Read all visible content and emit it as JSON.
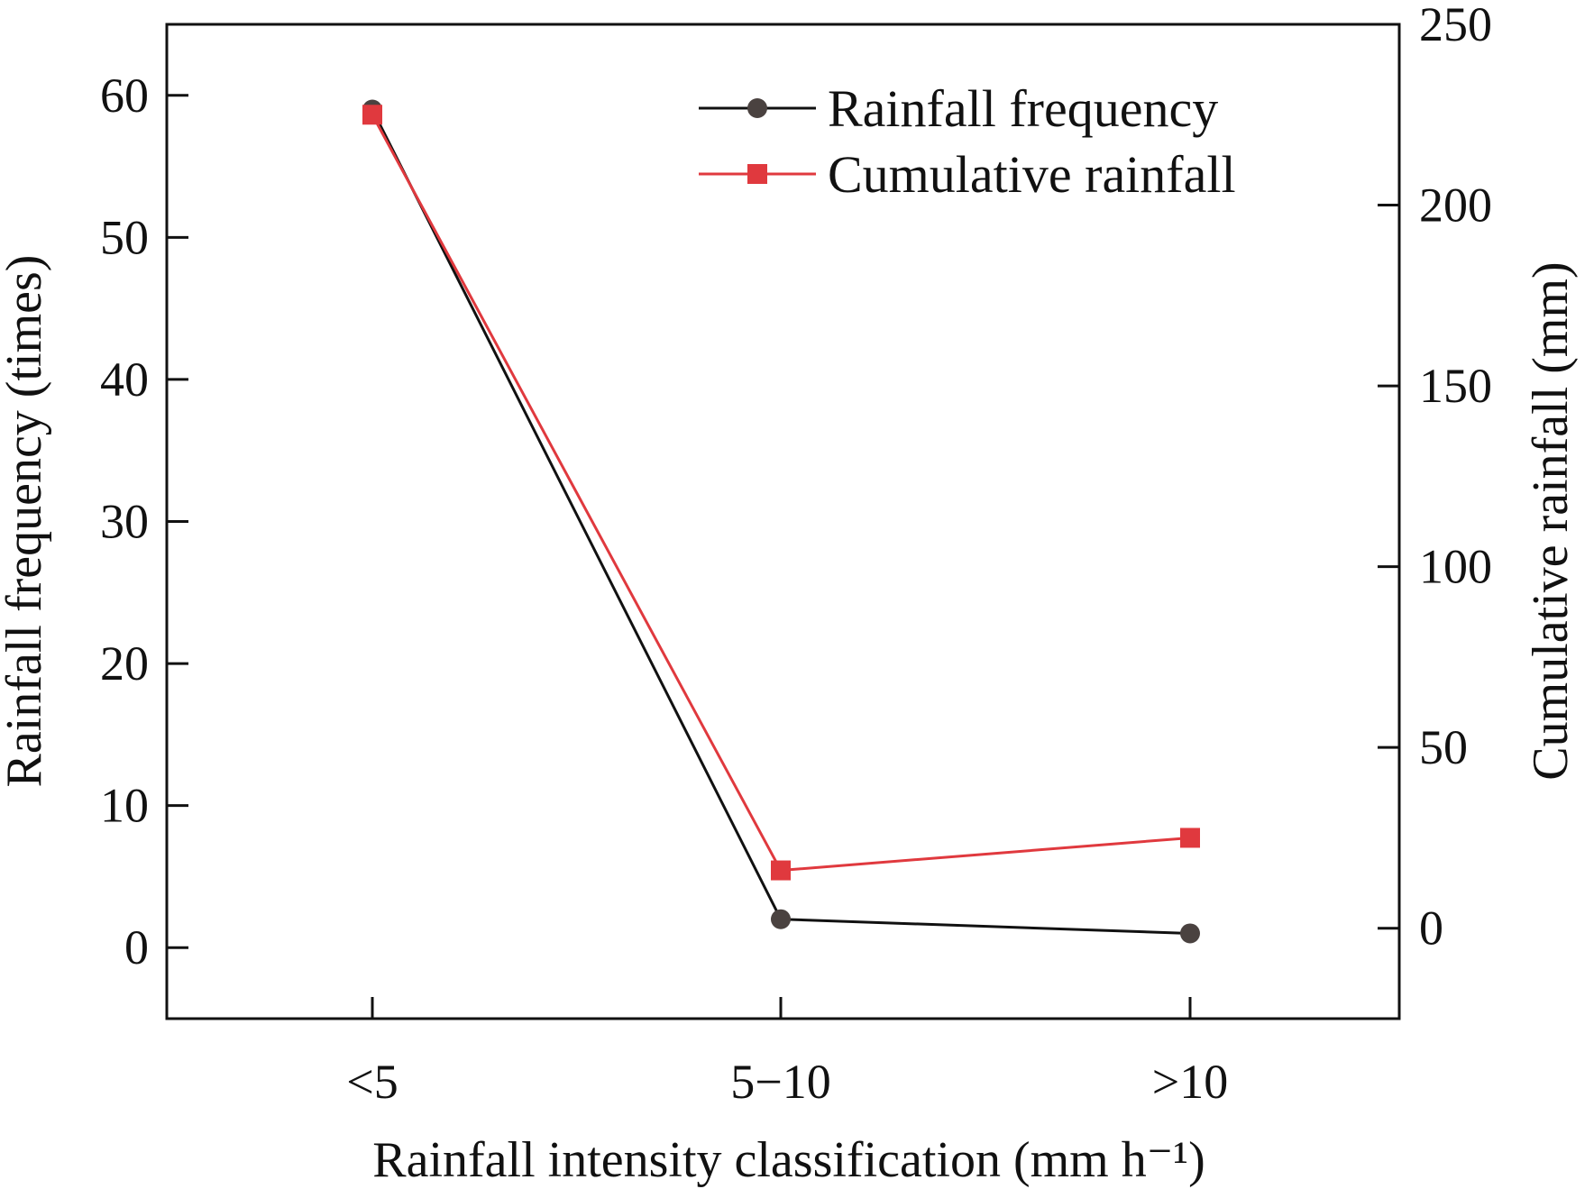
{
  "chart_data": {
    "type": "line",
    "categories": [
      "<5",
      "5−10",
      ">10"
    ],
    "xlabel": "Rainfall intensity classification (mm h⁻¹)",
    "y_left": {
      "label": "Rainfall frequency (times)",
      "ticks": [
        0,
        10,
        20,
        30,
        40,
        50,
        60
      ],
      "range": [
        -5,
        65
      ]
    },
    "y_right": {
      "label": "Cumulative rainfall (mm)",
      "ticks": [
        0,
        50,
        100,
        150,
        200,
        250
      ],
      "range": [
        -25,
        250
      ]
    },
    "series": [
      {
        "name": "Rainfall frequency",
        "axis": "left",
        "marker": "circle",
        "color": "#111111",
        "marker_color": "#4a4240",
        "values": [
          59,
          2,
          1
        ]
      },
      {
        "name": "Cumulative rainfall",
        "axis": "right",
        "marker": "square",
        "color": "#e0393e",
        "marker_color": "#e0393e",
        "values": [
          225,
          16,
          25
        ]
      }
    ],
    "legend_position": "top-right",
    "grid": false
  }
}
